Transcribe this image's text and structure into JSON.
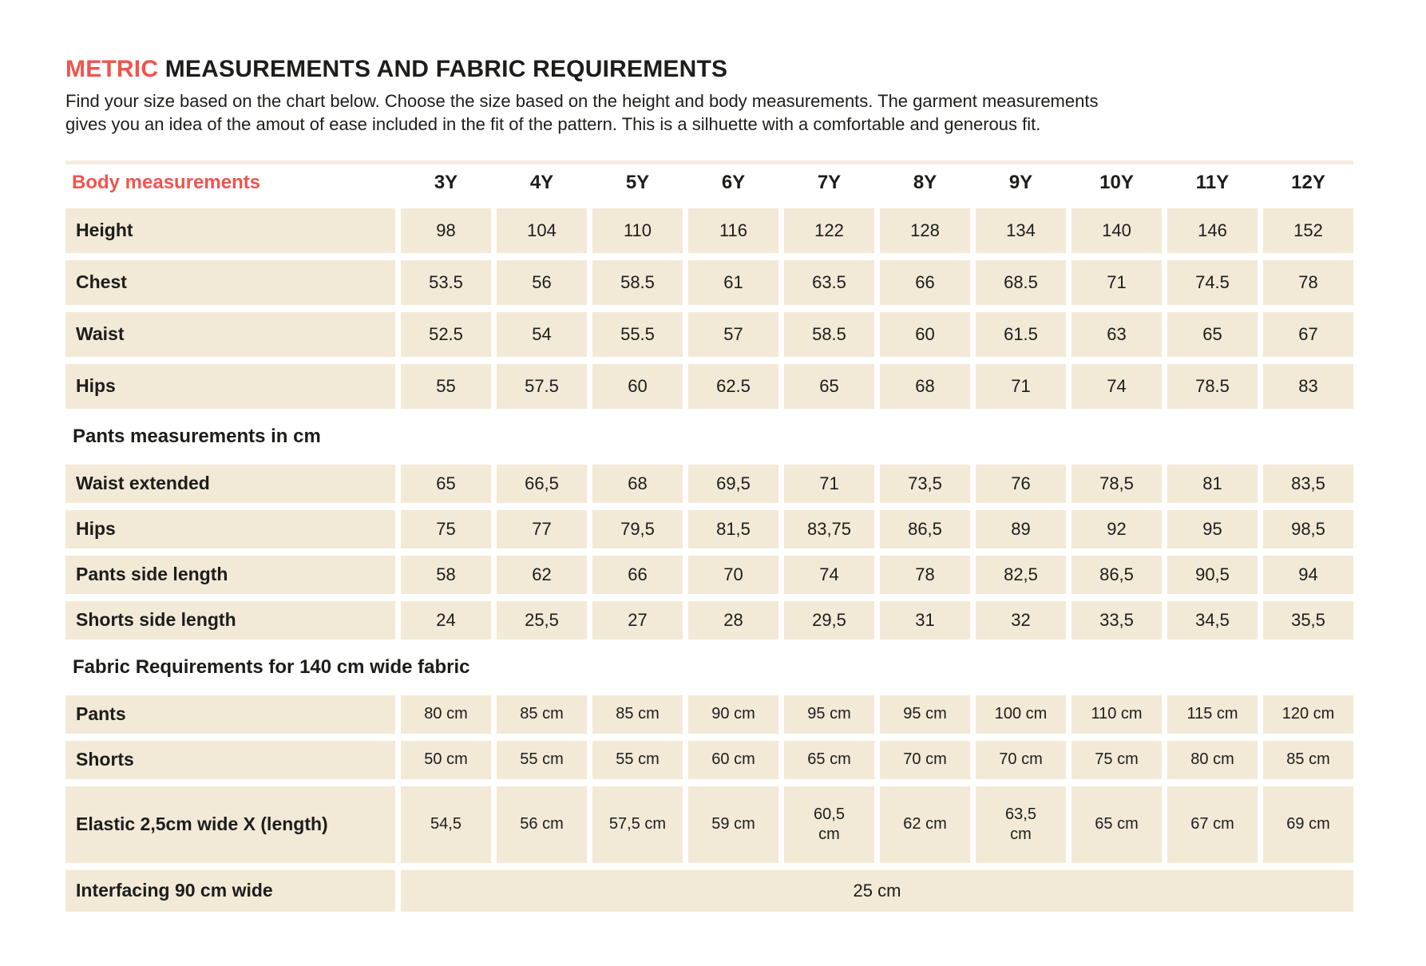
{
  "colors": {
    "accent": "#f0544f",
    "cell_background": "#f2e9d7",
    "top_strip": "#f5eee0",
    "text": "#1d1d1b"
  },
  "header": {
    "title_accent": "METRIC",
    "title_rest": " MEASUREMENTS AND FABRIC REQUIREMENTS",
    "description_line1": "Find your size based on the chart below. Choose the size based on the height and body measurements. The garment measurements",
    "description_line2": "gives you an idea of the amout of ease included in the fit of the pattern. This is a silhuette with a comfortable and generous fit."
  },
  "table": {
    "header_label": "Body measurements",
    "sizes": [
      "3Y",
      "4Y",
      "5Y",
      "6Y",
      "7Y",
      "8Y",
      "9Y",
      "10Y",
      "11Y",
      "12Y"
    ],
    "sections": [
      {
        "title": null,
        "rows": [
          {
            "label": "Height",
            "values": [
              "98",
              "104",
              "110",
              "116",
              "122",
              "128",
              "134",
              "140",
              "146",
              "152"
            ]
          },
          {
            "label": "Chest",
            "values": [
              "53.5",
              "56",
              "58.5",
              "61",
              "63.5",
              "66",
              "68.5",
              "71",
              "74.5",
              "78"
            ]
          },
          {
            "label": "Waist",
            "values": [
              "52.5",
              "54",
              "55.5",
              "57",
              "58.5",
              "60",
              "61.5",
              "63",
              "65",
              "67"
            ]
          },
          {
            "label": "Hips",
            "values": [
              "55",
              "57.5",
              "60",
              "62.5",
              "65",
              "68",
              "71",
              "74",
              "78.5",
              "83"
            ]
          }
        ]
      },
      {
        "title": "Pants measurements in cm",
        "rows": [
          {
            "label": "Waist extended",
            "values": [
              "65",
              "66,5",
              "68",
              "69,5",
              "71",
              "73,5",
              "76",
              "78,5",
              "81",
              "83,5"
            ]
          },
          {
            "label": "Hips",
            "values": [
              "75",
              "77",
              "79,5",
              "81,5",
              "83,75",
              "86,5",
              "89",
              "92",
              "95",
              "98,5"
            ]
          },
          {
            "label": "Pants side length",
            "values": [
              "58",
              "62",
              "66",
              "70",
              "74",
              "78",
              "82,5",
              "86,5",
              "90,5",
              "94"
            ]
          },
          {
            "label": "Shorts side length",
            "values": [
              "24",
              "25,5",
              "27",
              "28",
              "29,5",
              "31",
              "32",
              "33,5",
              "34,5",
              "35,5"
            ]
          }
        ]
      },
      {
        "title": "Fabric Requirements for 140 cm wide fabric",
        "rows": [
          {
            "label": "Pants",
            "values": [
              "80 cm",
              "85 cm",
              "85 cm",
              "90 cm",
              "95 cm",
              "95 cm",
              "100 cm",
              "110 cm",
              "115 cm",
              "120 cm"
            ]
          },
          {
            "label": "Shorts",
            "values": [
              "50 cm",
              "55 cm",
              "55 cm",
              "60 cm",
              "65 cm",
              "70 cm",
              "70 cm",
              "75 cm",
              "80 cm",
              "85 cm"
            ]
          },
          {
            "label": "Elastic 2,5cm wide X (length)",
            "values": [
              "54,5",
              "56 cm",
              "57,5 cm",
              "59 cm",
              "60,5\ncm",
              "62 cm",
              "63,5\ncm",
              "65 cm",
              "67 cm",
              "69 cm"
            ]
          },
          {
            "label": "Interfacing 90 cm wide",
            "merged_value": "25 cm"
          }
        ]
      }
    ]
  }
}
